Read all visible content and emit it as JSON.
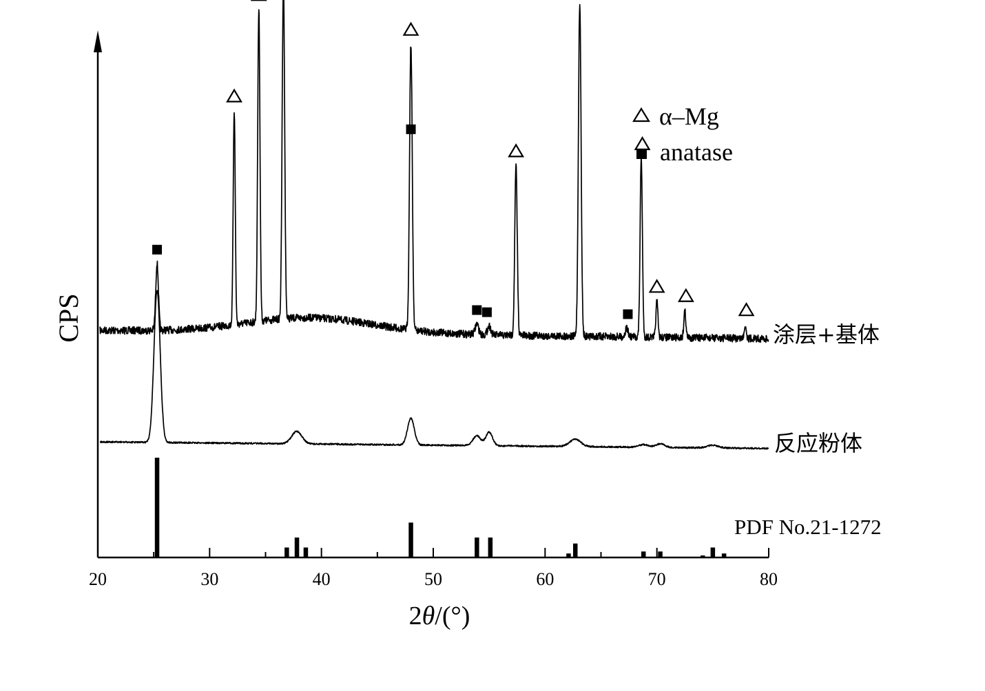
{
  "chart_data": {
    "type": "line",
    "xlabel_prefix": "2",
    "xlabel_symbol": "θ",
    "xlabel_suffix": "/(°)",
    "ylabel": "CPS",
    "xlim": [
      20,
      80
    ],
    "x_ticks": [
      "20",
      "30",
      "40",
      "50",
      "60",
      "70",
      "80"
    ],
    "legend": {
      "position": "top-right",
      "entries": [
        {
          "marker": "triangle",
          "label": "α–Mg"
        },
        {
          "marker": "square",
          "label": "anatase"
        }
      ]
    },
    "series": [
      {
        "name": "涂层+基体",
        "peaks": [
          {
            "x": 25.3,
            "h": 0.075,
            "w": 0.12
          },
          {
            "x": 32.2,
            "h": 0.24,
            "w": 0.09
          },
          {
            "x": 34.4,
            "h": 0.35,
            "w": 0.1
          },
          {
            "x": 36.6,
            "h": 0.38,
            "w": 0.11
          },
          {
            "x": 48.0,
            "h": 0.32,
            "w": 0.12
          },
          {
            "x": 53.9,
            "h": 0.012,
            "w": 0.15
          },
          {
            "x": 55.0,
            "h": 0.01,
            "w": 0.15
          },
          {
            "x": 57.4,
            "h": 0.19,
            "w": 0.11
          },
          {
            "x": 63.1,
            "h": 0.37,
            "w": 0.12
          },
          {
            "x": 67.3,
            "h": 0.01,
            "w": 0.12
          },
          {
            "x": 68.6,
            "h": 0.2,
            "w": 0.1
          },
          {
            "x": 70.0,
            "h": 0.04,
            "w": 0.09
          },
          {
            "x": 72.5,
            "h": 0.03,
            "w": 0.09
          },
          {
            "x": 77.9,
            "h": 0.015,
            "w": 0.09
          }
        ],
        "markers": [
          {
            "x": 25.3,
            "type": "square"
          },
          {
            "x": 32.2,
            "type": "triangle"
          },
          {
            "x": 34.4,
            "type": "triangle"
          },
          {
            "x": 36.6,
            "type": "triangle"
          },
          {
            "x": 48.0,
            "type": "triangle"
          },
          {
            "x": 48.0,
            "type": "square"
          },
          {
            "x": 53.9,
            "type": "square"
          },
          {
            "x": 54.8,
            "type": "square"
          },
          {
            "x": 57.4,
            "type": "triangle"
          },
          {
            "x": 63.1,
            "type": "triangle"
          },
          {
            "x": 67.4,
            "type": "square"
          },
          {
            "x": 68.7,
            "type": "triangle"
          },
          {
            "x": 70.0,
            "type": "triangle"
          },
          {
            "x": 72.6,
            "type": "triangle"
          },
          {
            "x": 78.0,
            "type": "triangle"
          }
        ]
      },
      {
        "name": "反应粉体",
        "peaks": [
          {
            "x": 25.3,
            "h": 0.17,
            "w": 0.28
          },
          {
            "x": 37.8,
            "h": 0.014,
            "w": 0.45
          },
          {
            "x": 48.0,
            "h": 0.03,
            "w": 0.3
          },
          {
            "x": 53.9,
            "h": 0.011,
            "w": 0.35
          },
          {
            "x": 55.0,
            "h": 0.015,
            "w": 0.3
          },
          {
            "x": 62.7,
            "h": 0.008,
            "w": 0.5
          },
          {
            "x": 68.8,
            "h": 0.003,
            "w": 0.4
          },
          {
            "x": 70.3,
            "h": 0.004,
            "w": 0.4
          },
          {
            "x": 75.0,
            "h": 0.003,
            "w": 0.5
          }
        ]
      },
      {
        "name": "PDF No.21-1272",
        "sticks": [
          {
            "x": 25.3,
            "intensity": 100
          },
          {
            "x": 36.9,
            "intensity": 10
          },
          {
            "x": 37.8,
            "intensity": 20
          },
          {
            "x": 38.6,
            "intensity": 10
          },
          {
            "x": 48.0,
            "intensity": 35
          },
          {
            "x": 53.9,
            "intensity": 20
          },
          {
            "x": 55.1,
            "intensity": 20
          },
          {
            "x": 62.1,
            "intensity": 4
          },
          {
            "x": 62.7,
            "intensity": 14
          },
          {
            "x": 68.8,
            "intensity": 6
          },
          {
            "x": 70.3,
            "intensity": 6
          },
          {
            "x": 74.1,
            "intensity": 2
          },
          {
            "x": 75.0,
            "intensity": 10
          },
          {
            "x": 76.0,
            "intensity": 4
          }
        ]
      }
    ]
  }
}
